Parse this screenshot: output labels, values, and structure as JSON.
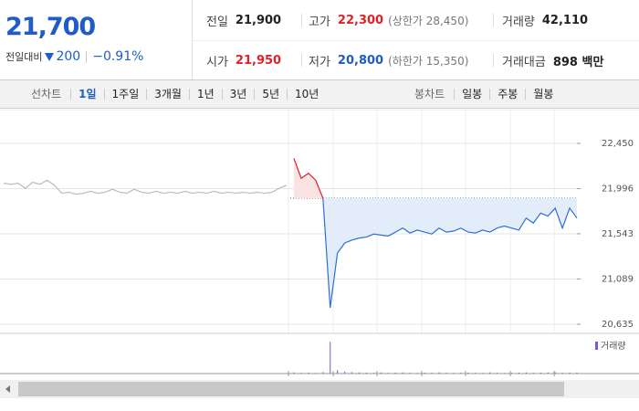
{
  "quote": {
    "price": "21,700",
    "change_label": "전일대비",
    "change": "200",
    "change_rate": "−0.91%"
  },
  "stats": [
    [
      {
        "label": "전일",
        "value": "21,900"
      },
      {
        "label": "고가",
        "value": "22,300",
        "note": "(상한가 28,450)"
      },
      {
        "label": "거래량",
        "value": "42,110"
      }
    ],
    [
      {
        "label": "시가",
        "value": "21,950"
      },
      {
        "label": "저가",
        "value": "20,800",
        "note": "(하한가 15,350)"
      },
      {
        "label": "거래대금",
        "value": "898 백만"
      }
    ]
  ],
  "line_tabs": {
    "label": "선차트",
    "items": [
      "1일",
      "1주일",
      "3개월",
      "1년",
      "3년",
      "5년",
      "10년"
    ],
    "active": 0
  },
  "candle_tabs": {
    "label": "봉차트",
    "items": [
      "일봉",
      "주봉",
      "월봉"
    ]
  },
  "chart_data": {
    "type": "line",
    "ylim": [
      20635,
      22450
    ],
    "yticks": [
      {
        "value": 22450,
        "label": "22,450"
      },
      {
        "value": 21996,
        "label": "21,996"
      },
      {
        "value": 21543,
        "label": "21,543"
      },
      {
        "value": 21089,
        "label": "21,089"
      },
      {
        "value": 20635,
        "label": "20,635"
      }
    ],
    "baseline": 21900,
    "grid": true,
    "series": [
      {
        "color": "#bbbbbb",
        "values": [
          22050,
          22040,
          22050,
          22000,
          22060,
          22040,
          22080,
          22030,
          21950,
          21960,
          21940,
          21950,
          21970,
          21950,
          21960,
          21990,
          21960,
          21950,
          21990,
          21960,
          21950,
          21970,
          21950,
          21960,
          21950,
          21970,
          21950,
          21960,
          21950,
          21970,
          21950,
          21960,
          21950,
          21960,
          21950,
          21960,
          21950,
          21960,
          22000,
          22030,
          null,
          null,
          null,
          null,
          null,
          null,
          null,
          null,
          null,
          null,
          null,
          null,
          null,
          null,
          null,
          null,
          null,
          null,
          null,
          null,
          null,
          null,
          null,
          null,
          null,
          null,
          null,
          null,
          null,
          null,
          null,
          null,
          null,
          null,
          null,
          null,
          null,
          null,
          null,
          null
        ]
      },
      {
        "color": "#e0202a",
        "values": [
          null,
          null,
          null,
          null,
          null,
          null,
          null,
          null,
          null,
          null,
          null,
          null,
          null,
          null,
          null,
          null,
          null,
          null,
          null,
          null,
          null,
          null,
          null,
          null,
          null,
          null,
          null,
          null,
          null,
          null,
          null,
          null,
          null,
          null,
          null,
          null,
          null,
          null,
          null,
          null,
          22300,
          22100,
          22150,
          22080,
          21900,
          null,
          null,
          null,
          null,
          null,
          null,
          null,
          null,
          null,
          null,
          null,
          null,
          null,
          null,
          null,
          null,
          null,
          null,
          null,
          null,
          null,
          null,
          null,
          null,
          null,
          null,
          null,
          null,
          null,
          null,
          null,
          null,
          null,
          null,
          null
        ]
      },
      {
        "color": "#2e6fd6",
        "values": [
          null,
          null,
          null,
          null,
          null,
          null,
          null,
          null,
          null,
          null,
          null,
          null,
          null,
          null,
          null,
          null,
          null,
          null,
          null,
          null,
          null,
          null,
          null,
          null,
          null,
          null,
          null,
          null,
          null,
          null,
          null,
          null,
          null,
          null,
          null,
          null,
          null,
          null,
          null,
          null,
          null,
          null,
          null,
          null,
          21900,
          20800,
          21350,
          21450,
          21480,
          21500,
          21510,
          21540,
          21530,
          21520,
          21560,
          21600,
          21550,
          21580,
          21560,
          21540,
          21600,
          21560,
          21570,
          21600,
          21560,
          21550,
          21580,
          21560,
          21600,
          21620,
          21600,
          21580,
          21700,
          21650,
          21750,
          21720,
          21800,
          21600,
          21800,
          21700
        ]
      }
    ],
    "volume": {
      "name": "거래량",
      "color": "#7b5bc4",
      "ylim": [
        0,
        9000
      ],
      "values": [
        null,
        null,
        null,
        null,
        null,
        null,
        null,
        null,
        null,
        null,
        null,
        null,
        null,
        null,
        null,
        null,
        null,
        null,
        null,
        null,
        null,
        null,
        null,
        null,
        null,
        null,
        null,
        null,
        null,
        null,
        null,
        null,
        null,
        null,
        null,
        null,
        null,
        null,
        null,
        null,
        300,
        200,
        250,
        150,
        400,
        8200,
        900,
        500,
        400,
        300,
        250,
        200,
        300,
        200,
        250,
        300,
        200,
        150,
        250,
        200,
        300,
        200,
        150,
        200,
        250,
        200,
        150,
        300,
        200,
        150,
        200,
        250,
        300,
        200,
        250,
        300,
        350,
        200,
        300,
        250
      ]
    }
  }
}
